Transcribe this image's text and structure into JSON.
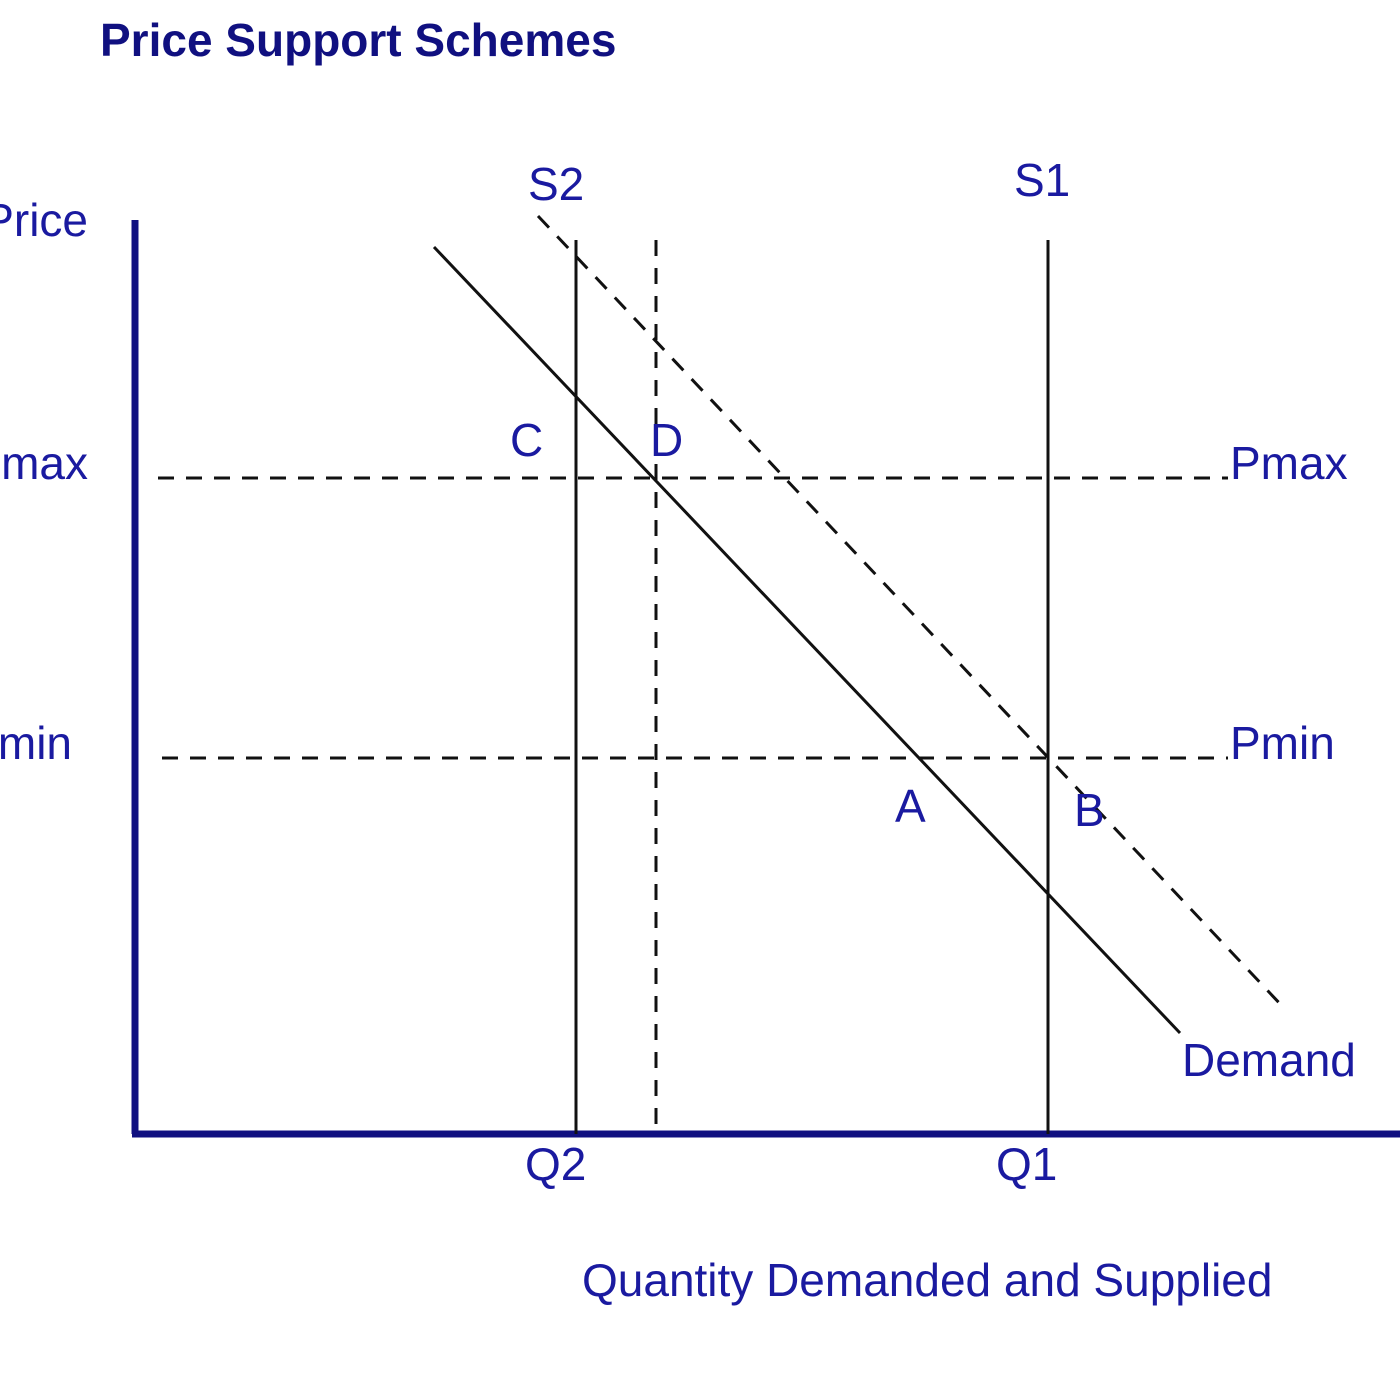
{
  "title": "Price Support Schemes",
  "axis": {
    "y_label": "Price",
    "x_label": "Quantity Demanded and Supplied"
  },
  "price_levels": {
    "pmax_left": "Pmax",
    "pmax_right": "Pmax",
    "pmin_left": "Pmin",
    "pmin_right": "Pmin"
  },
  "quantities": {
    "q1": "Q1",
    "q2": "Q2"
  },
  "curves": {
    "s1": "S1",
    "s2": "S2",
    "demand": "Demand"
  },
  "points": {
    "a": "A",
    "b": "B",
    "c": "C",
    "d": "D"
  },
  "colors": {
    "text": "#1a1aa0",
    "axis": "#101080",
    "lines": "#111111"
  }
}
